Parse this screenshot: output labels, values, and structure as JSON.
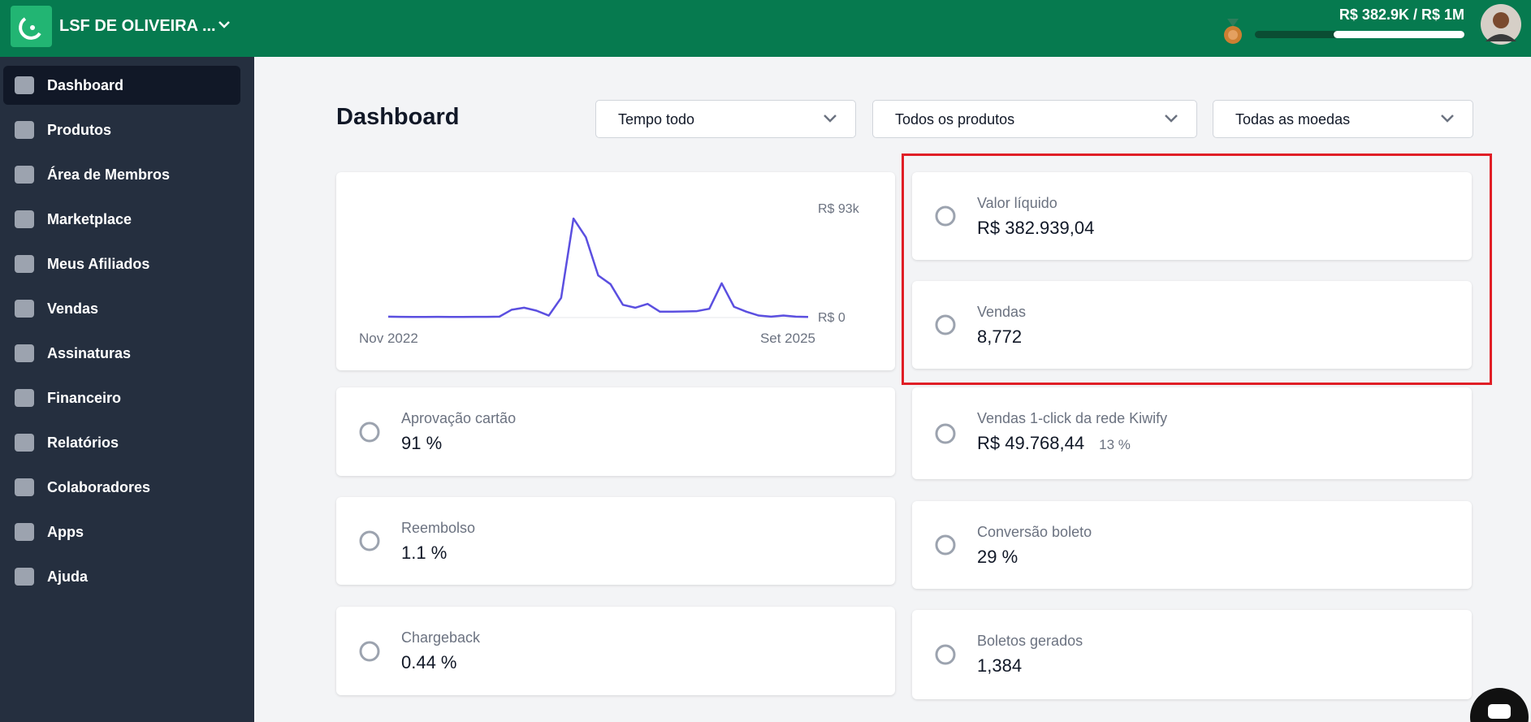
{
  "header": {
    "company": "LSF DE OLIVEIRA ...",
    "goal": "R$ 382.9K / R$ 1M"
  },
  "sidebar": {
    "items": [
      "Dashboard",
      "Produtos",
      "Área de Membros",
      "Marketplace",
      "Meus Afiliados",
      "Vendas",
      "Assinaturas",
      "Financeiro",
      "Relatórios",
      "Colaboradores",
      "Apps",
      "Ajuda"
    ]
  },
  "page": {
    "title": "Dashboard",
    "filters": [
      "Tempo todo",
      "Todos os produtos",
      "Todas as moedas"
    ]
  },
  "chart_data": {
    "type": "line",
    "categories": [
      "Nov 2022",
      null,
      null,
      null,
      null,
      null,
      null,
      null,
      null,
      null,
      null,
      null,
      null,
      null,
      null,
      null,
      null,
      null,
      null,
      null,
      null,
      null,
      null,
      null,
      null,
      null,
      null,
      null,
      null,
      null,
      null,
      null,
      null,
      null,
      "Set 2025"
    ],
    "series": [
      {
        "color": "#5b4fe0",
        "values": [
          0.8,
          0.6,
          0.5,
          0.5,
          0.6,
          0.5,
          0.5,
          0.6,
          0.6,
          0.8,
          6.7,
          8.4,
          5.9,
          1.7,
          16.8,
          84.6,
          68.7,
          36,
          28.5,
          10.9,
          8.4,
          11.7,
          5,
          5,
          5.2,
          5.5,
          7.5,
          29.3,
          9.2,
          5,
          1.7,
          0.8,
          1.7,
          0.8,
          0.5
        ]
      }
    ],
    "ylim": [
      0,
      93
    ],
    "yticks": [
      {
        "value": 0,
        "label": "R$ 0"
      },
      {
        "value": 93,
        "label": "R$ 93k"
      }
    ]
  },
  "cards": [
    {
      "label": "Valor líquido",
      "value": "R$ 382.939,04"
    },
    {
      "label": "Vendas",
      "value": "8,772"
    },
    {
      "label": "Aprovação cartão",
      "value": "91 %"
    },
    {
      "label": "Vendas 1-click da rede Kiwify",
      "value": "R$ 49.768,44",
      "extra": "13 %"
    },
    {
      "label": "Reembolso",
      "value": "1.1 %"
    },
    {
      "label": "Conversão boleto",
      "value": "29 %"
    },
    {
      "label": "Chargeback",
      "value": "0.44 %"
    },
    {
      "label": "Boletos gerados",
      "value": "1,384"
    }
  ]
}
